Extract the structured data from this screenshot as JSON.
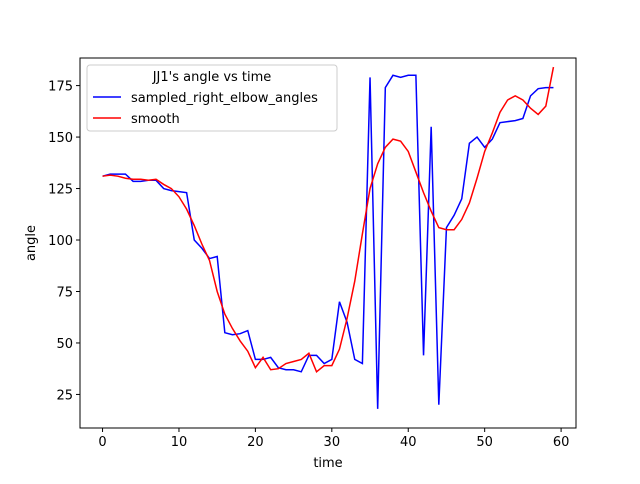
{
  "chart_data": {
    "type": "line",
    "legend_title": "JJ1's angle vs time",
    "legend_position": "upper-left",
    "xlabel": "time",
    "ylabel": "angle",
    "x": [
      0,
      1,
      2,
      3,
      4,
      5,
      6,
      7,
      8,
      9,
      10,
      11,
      12,
      13,
      14,
      15,
      16,
      17,
      18,
      19,
      20,
      21,
      22,
      23,
      24,
      25,
      26,
      27,
      28,
      29,
      30,
      31,
      32,
      33,
      34,
      35,
      36,
      37,
      38,
      39,
      40,
      41,
      42,
      43,
      44,
      45,
      46,
      47,
      48,
      49,
      50,
      51,
      52,
      53,
      54,
      55,
      56,
      57,
      58,
      59
    ],
    "series": [
      {
        "name": "sampled_right_elbow_angles",
        "color": "#0000ff",
        "values": [
          131,
          132,
          132,
          132,
          128.5,
          128.5,
          129,
          129,
          125,
          124,
          123.5,
          123,
          100,
          96,
          91,
          92,
          55,
          54,
          54.5,
          56,
          42,
          42,
          43,
          38,
          37,
          37,
          36,
          44,
          44,
          40,
          42,
          70,
          60,
          42,
          40,
          179,
          18,
          174,
          180,
          179,
          180,
          180,
          44,
          155,
          20,
          106,
          112,
          120,
          147,
          150,
          145,
          149,
          157,
          157.5,
          158,
          159,
          170,
          173.5,
          174,
          174
        ]
      },
      {
        "name": "smooth",
        "color": "#ff0000",
        "values": [
          131,
          131.5,
          131,
          130,
          129.5,
          129.5,
          129,
          129.5,
          127,
          125,
          121,
          115,
          107,
          98,
          90,
          75,
          64,
          57,
          51,
          46,
          38,
          43,
          37,
          37.5,
          40,
          41,
          42,
          45,
          36,
          39,
          39,
          47,
          62,
          80,
          103,
          125,
          137,
          145,
          149,
          148,
          143,
          133,
          123,
          114,
          106,
          105,
          105,
          110,
          118,
          130,
          143,
          152,
          162,
          168,
          170,
          168,
          164,
          161,
          165,
          184
        ]
      }
    ],
    "xlim": [
      -2.95,
      61.95
    ],
    "xticks": [
      0,
      10,
      20,
      30,
      40,
      50,
      60
    ],
    "ylim": [
      8.7,
      188.4
    ],
    "yticks": [
      25,
      50,
      75,
      100,
      125,
      150,
      175
    ]
  }
}
